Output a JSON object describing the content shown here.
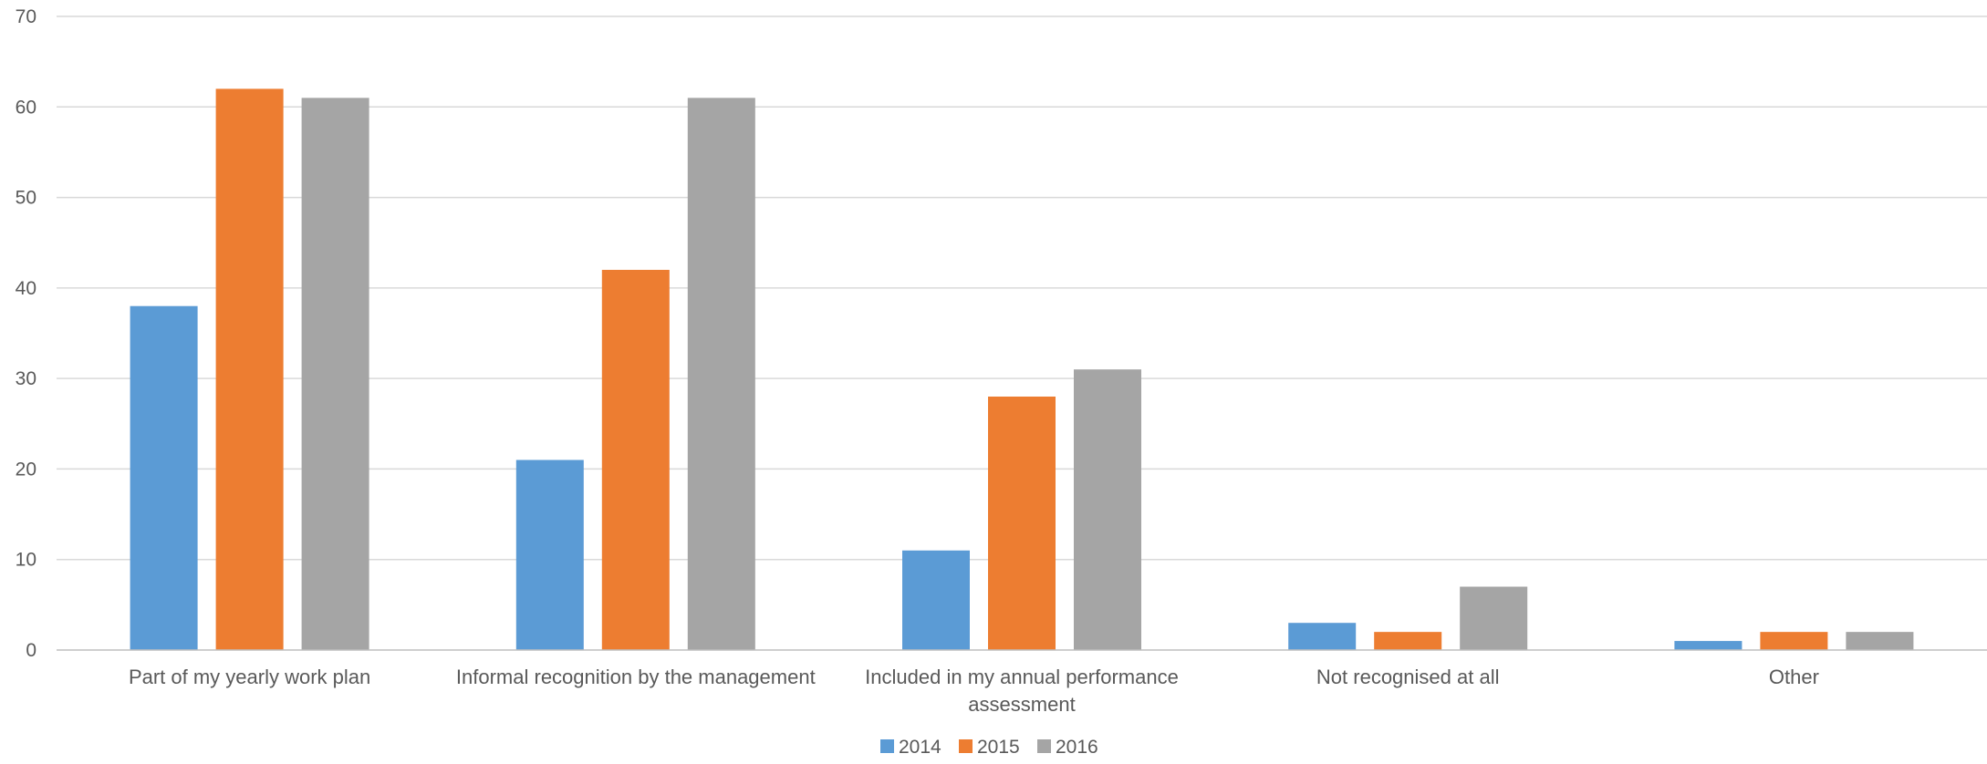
{
  "chart_data": {
    "type": "bar",
    "categories": [
      [
        "Part of my yearly work plan"
      ],
      [
        "Informal recognition by the management"
      ],
      [
        "Included in my annual performance",
        "assessment"
      ],
      [
        "Not recognised at all"
      ],
      [
        "Other"
      ]
    ],
    "series": [
      {
        "name": "2014",
        "color": "#5b9bd5",
        "values": [
          38,
          21,
          11,
          3,
          1
        ]
      },
      {
        "name": "2015",
        "color": "#ed7d31",
        "values": [
          62,
          42,
          28,
          2,
          2
        ]
      },
      {
        "name": "2016",
        "color": "#a5a5a5",
        "values": [
          61,
          61,
          31,
          7,
          2
        ]
      }
    ],
    "ylim": [
      0,
      70
    ],
    "yticks": [
      0,
      10,
      20,
      30,
      40,
      50,
      60,
      70
    ],
    "grid": true,
    "legend_position": "bottom-center"
  }
}
